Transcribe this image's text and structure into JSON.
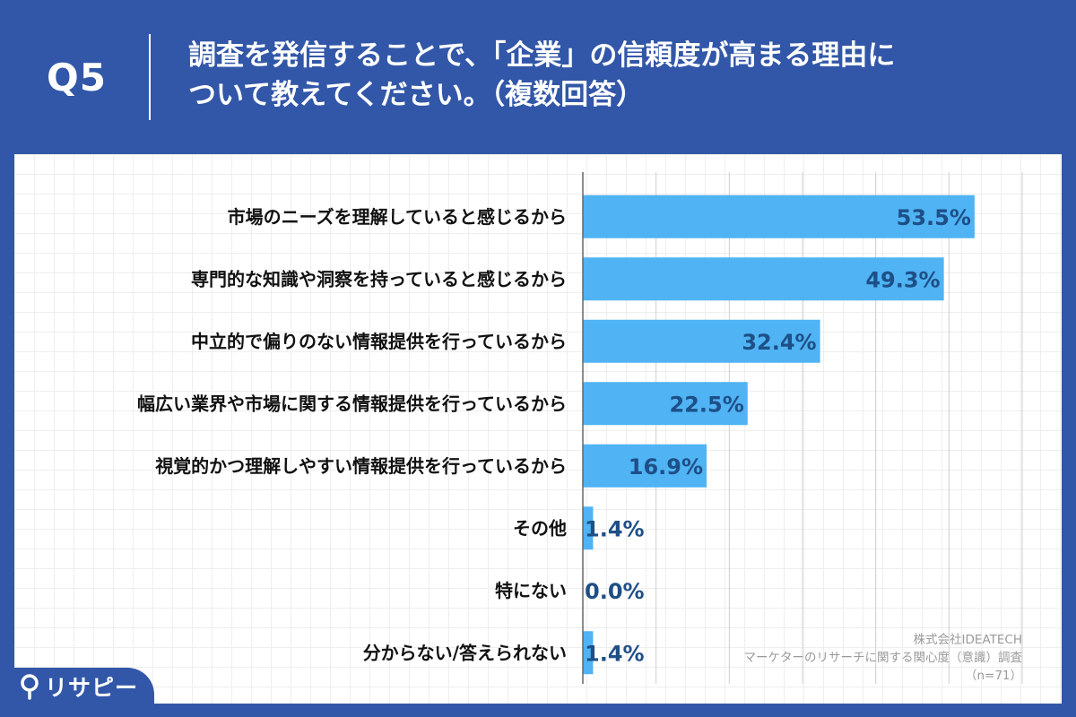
{
  "header": {
    "q_label": "Q5",
    "question_line1": "調査を発信することで、「企業」の信頼度が高まる理由に",
    "question_line2": "ついて教えてください。（複数回答）"
  },
  "chart_data": {
    "type": "bar",
    "orientation": "horizontal",
    "categories": [
      "市場のニーズを理解していると感じるから",
      "専門的な知識や洞察を持っていると感じるから",
      "中立的で偏りのない情報提供を行っているから",
      "幅広い業界や市場に関する情報提供を行っているから",
      "視覚的かつ理解しやすい情報提供を行っているから",
      "その他",
      "特にない",
      "分からない/答えられない"
    ],
    "values": [
      53.5,
      49.3,
      32.4,
      22.5,
      16.9,
      1.4,
      0.0,
      1.4
    ],
    "value_labels": [
      "53.5%",
      "49.3%",
      "32.4%",
      "22.5%",
      "16.9%",
      "1.4%",
      "0.0%",
      "1.4%"
    ],
    "xlim": [
      0,
      60
    ],
    "bar_color": "#4fb3f4",
    "label_color": "#1e4f86",
    "grid": true
  },
  "source": {
    "company": "株式会社IDEATECH",
    "survey": "マーケターのリサーチに関する関心度（意識）調査",
    "n": "（n=71）"
  },
  "logo": {
    "text": "リサピー"
  },
  "colors": {
    "brand": "#3257a8",
    "bar": "#4fb3f4"
  }
}
